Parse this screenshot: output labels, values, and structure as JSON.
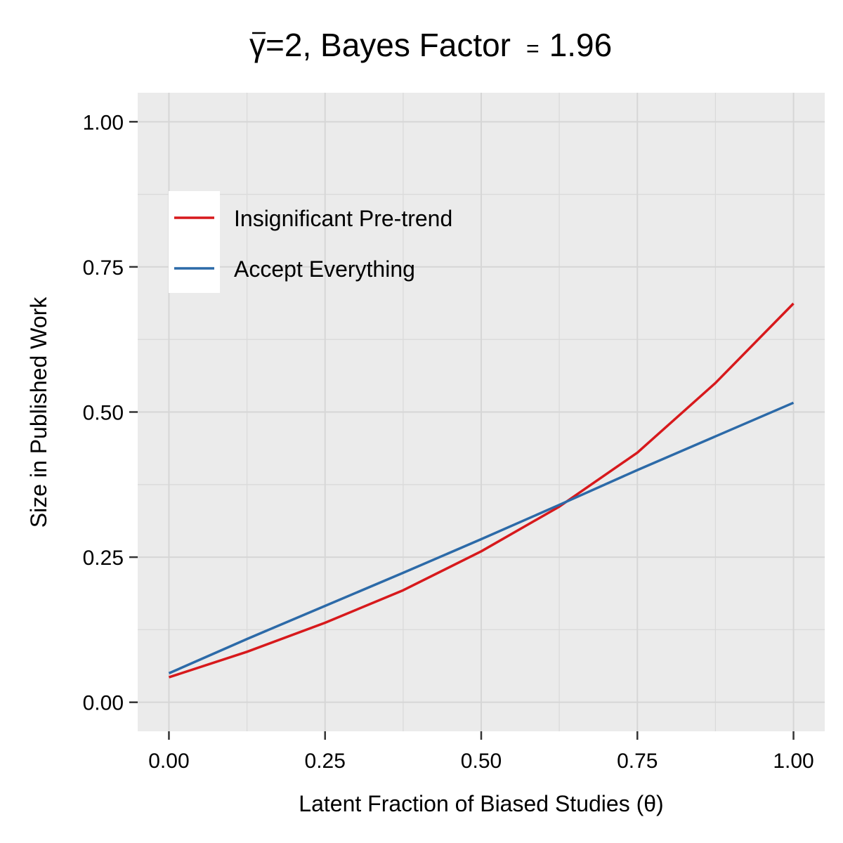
{
  "chart_data": {
    "type": "line",
    "title": "γ̄=2, Bayes Factor  = 1.96",
    "title_gamma": "γ",
    "title_rest": "=2, Bayes Factor",
    "title_eq": "=",
    "title_value": "1.96",
    "xlabel": "Latent Fraction of Biased Studies (θ)",
    "ylabel": "Size in Published Work",
    "xlim": [
      -0.05,
      1.05
    ],
    "ylim": [
      -0.05,
      1.05
    ],
    "x_ticks": [
      0,
      0.25,
      0.5,
      0.75,
      1
    ],
    "x_tick_labels": [
      "0.00",
      "0.25",
      "0.50",
      "0.75",
      "1.00"
    ],
    "y_ticks": [
      0,
      0.25,
      0.5,
      0.75,
      1
    ],
    "y_tick_labels": [
      "0.00",
      "0.25",
      "0.50",
      "0.75",
      "1.00"
    ],
    "grid": true,
    "legend_position": "top-left",
    "series": [
      {
        "name": "Insignificant Pre-trend",
        "color": "#d7191c",
        "x": [
          0,
          0.125,
          0.25,
          0.375,
          0.5,
          0.625,
          0.75,
          0.875,
          1
        ],
        "values": [
          0.043,
          0.087,
          0.137,
          0.193,
          0.26,
          0.337,
          0.43,
          0.55,
          0.687
        ]
      },
      {
        "name": "Accept Everything",
        "color": "#2c6aa8",
        "x": [
          0,
          0.125,
          0.25,
          0.375,
          0.5,
          0.625,
          0.75,
          0.875,
          1
        ],
        "values": [
          0.05,
          0.109,
          0.166,
          0.223,
          0.281,
          0.34,
          0.4,
          0.458,
          0.516
        ]
      }
    ]
  }
}
